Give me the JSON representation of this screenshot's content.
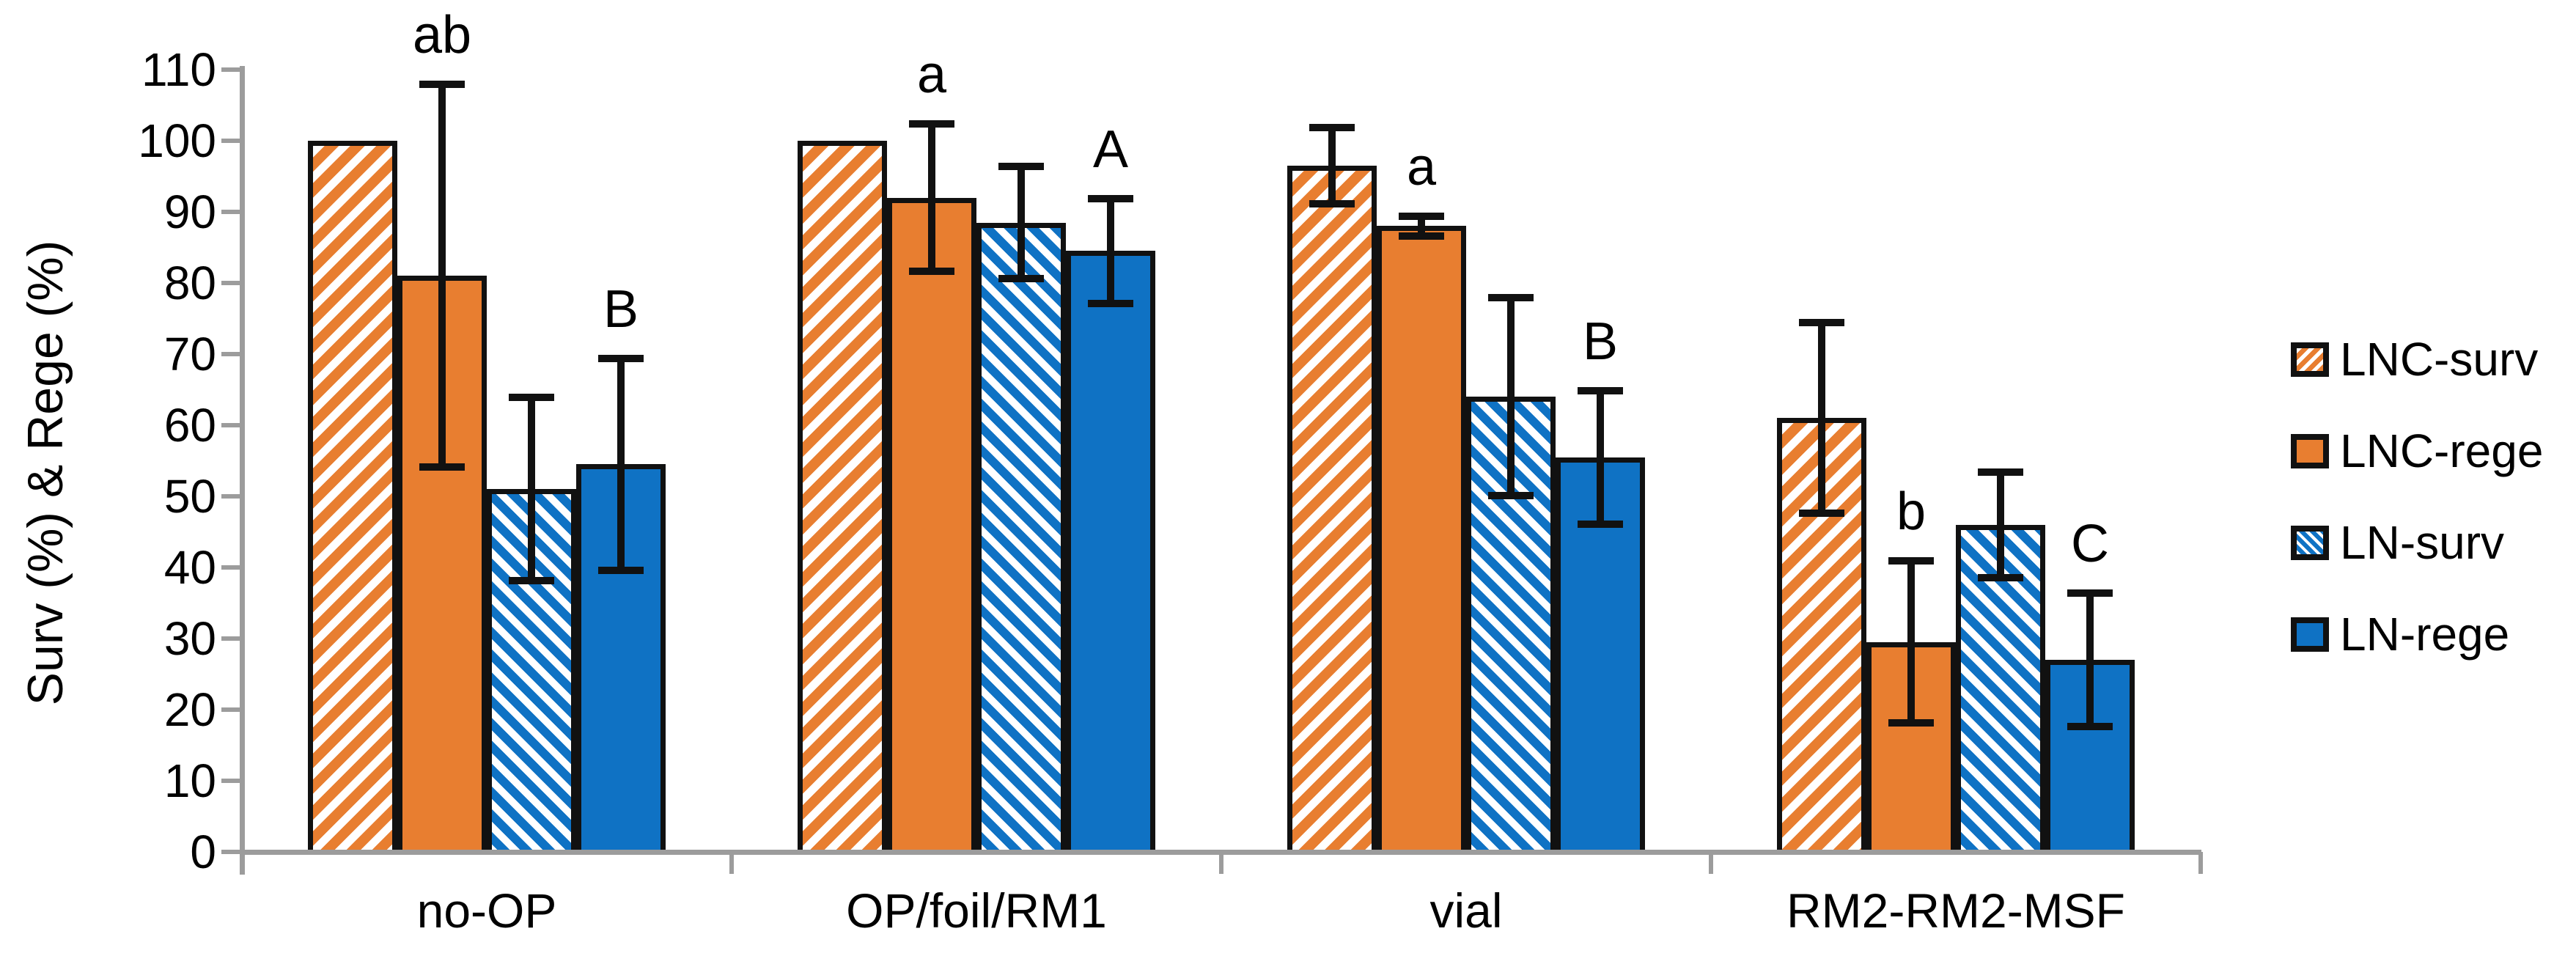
{
  "chart_data": {
    "type": "bar",
    "title": "",
    "ylabel": "Surv (%) & Rege (%)",
    "xlabel": "",
    "ylim": [
      0,
      110
    ],
    "y_ticks": [
      0,
      10,
      20,
      30,
      40,
      50,
      60,
      70,
      80,
      90,
      100,
      110
    ],
    "grid": false,
    "legend_position": "right",
    "categories": [
      "no-OP",
      "OP/foil/RM1",
      "vial",
      "RM2-RM2-MSF"
    ],
    "series": [
      {
        "name": "LNC-surv",
        "style": "orange-hatch",
        "values": [
          100,
          100,
          96.5,
          61
        ],
        "errors": [
          0,
          0,
          5.5,
          13.5
        ]
      },
      {
        "name": "LNC-rege",
        "style": "orange-solid",
        "values": [
          81,
          92,
          88,
          29.5
        ],
        "errors": [
          27,
          10.5,
          1.5,
          11.5
        ]
      },
      {
        "name": "LN-surv",
        "style": "blue-hatch",
        "values": [
          51,
          88.5,
          64,
          46
        ],
        "errors": [
          13,
          8,
          14,
          7.5
        ]
      },
      {
        "name": "LN-rege",
        "style": "blue-solid",
        "values": [
          54.5,
          84.5,
          55.5,
          27
        ],
        "errors": [
          15,
          7.5,
          9.5,
          9.5
        ]
      }
    ],
    "annotations": [
      {
        "category": "no-OP",
        "series": "LNC-rege",
        "text": "ab"
      },
      {
        "category": "no-OP",
        "series": "LN-rege",
        "text": "B"
      },
      {
        "category": "OP/foil/RM1",
        "series": "LNC-rege",
        "text": "a"
      },
      {
        "category": "OP/foil/RM1",
        "series": "LN-rege",
        "text": "A"
      },
      {
        "category": "vial",
        "series": "LNC-rege",
        "text": "a"
      },
      {
        "category": "vial",
        "series": "LN-rege",
        "text": "B"
      },
      {
        "category": "RM2-RM2-MSF",
        "series": "LNC-rege",
        "text": "b"
      },
      {
        "category": "RM2-RM2-MSF",
        "series": "LN-rege",
        "text": "C"
      }
    ]
  },
  "legend": {
    "entries": [
      "LNC-surv",
      "LNC-rege",
      "LN-surv",
      "LN-rege"
    ]
  },
  "colors": {
    "orange": "#E87E30",
    "blue": "#0F72C4",
    "axis_gray": "#9C9C9C",
    "ink": "#111111"
  }
}
